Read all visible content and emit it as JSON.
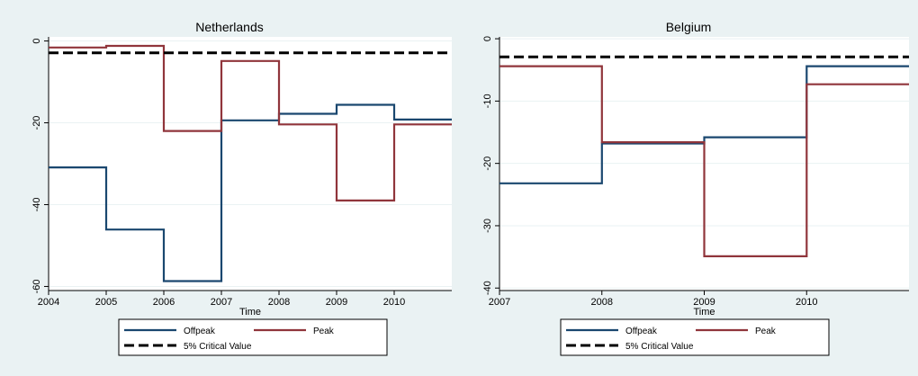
{
  "chart_data": [
    {
      "type": "line",
      "title": "Netherlands",
      "xlabel": "Time",
      "ylabel": "",
      "xlim": [
        2004,
        2011
      ],
      "ylim": [
        -61,
        1
      ],
      "x_ticks": [
        "2004",
        "2005",
        "2006",
        "2007",
        "2008",
        "2009",
        "2010"
      ],
      "y_ticks": [
        "0",
        "-20",
        "-40",
        "-60"
      ],
      "grid": true,
      "series": [
        {
          "name": "Offpeak",
          "color": "#1a476f",
          "style": "step",
          "x": [
            2004,
            2005,
            2006,
            2007,
            2008,
            2009,
            2010,
            2011
          ],
          "values": [
            -30.9,
            -46.1,
            -58.7,
            -19.4,
            -17.8,
            -15.6,
            -19.2,
            -19.2
          ]
        },
        {
          "name": "Peak",
          "color": "#90353b",
          "style": "step",
          "x": [
            2004,
            2005,
            2006,
            2007,
            2008,
            2009,
            2010,
            2011
          ],
          "values": [
            -1.6,
            -1.2,
            -22.0,
            -4.9,
            -20.4,
            -39.0,
            -20.4,
            -20.4
          ]
        },
        {
          "name": "5% Critical Value",
          "color": "#000000",
          "style": "dashed",
          "x": [
            2004,
            2011
          ],
          "values": [
            -2.9,
            -2.9
          ]
        }
      ],
      "legend_position": "bottom"
    },
    {
      "type": "line",
      "title": "Belgium",
      "xlabel": "Time",
      "ylabel": "",
      "xlim": [
        2007,
        2011
      ],
      "ylim": [
        -40.4,
        0.3
      ],
      "x_ticks": [
        "2007",
        "2008",
        "2009",
        "2010"
      ],
      "y_ticks": [
        "0",
        "-10",
        "-20",
        "-30",
        "-40"
      ],
      "grid": true,
      "series": [
        {
          "name": "Offpeak",
          "color": "#1a476f",
          "style": "step",
          "x": [
            2007,
            2008,
            2009,
            2010,
            2011
          ],
          "values": [
            -23.2,
            -16.8,
            -15.8,
            -4.4,
            -4.4
          ]
        },
        {
          "name": "Peak",
          "color": "#90353b",
          "style": "step",
          "x": [
            2007,
            2008,
            2009,
            2010,
            2011
          ],
          "values": [
            -4.4,
            -16.6,
            -34.9,
            -7.3,
            -7.3
          ]
        },
        {
          "name": "5% Critical Value",
          "color": "#000000",
          "style": "dashed",
          "x": [
            2007,
            2011
          ],
          "values": [
            -2.9,
            -2.9
          ]
        }
      ],
      "legend_position": "bottom"
    }
  ],
  "colors": {
    "background": "#eaf2f3",
    "plot_background": "#ffffff",
    "grid": "#eaf2f3",
    "offpeak": "#1a476f",
    "peak": "#90353b",
    "critical": "#000000"
  }
}
